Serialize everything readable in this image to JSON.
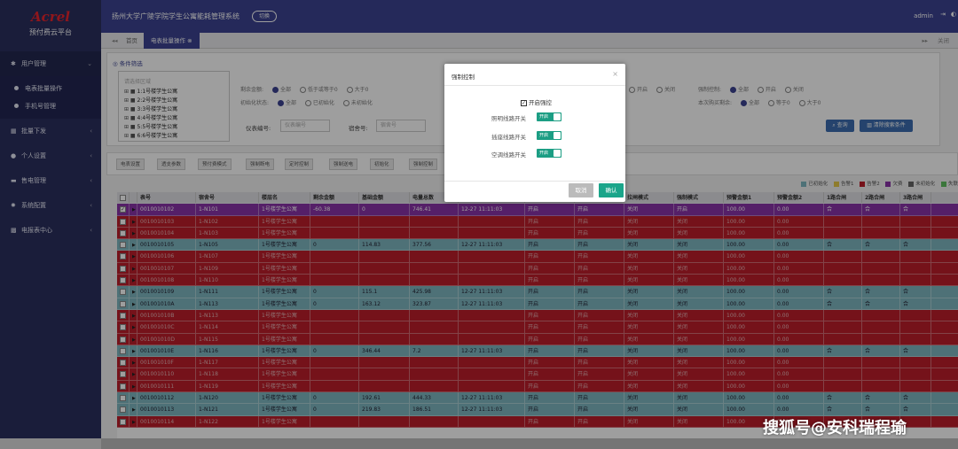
{
  "sidebar": {
    "brand": "Acrel",
    "platform": "预付费云平台",
    "menu": [
      {
        "label": "用户管理",
        "icon": "gear-icon"
      },
      {
        "label": "批量下发",
        "icon": "list-icon"
      },
      {
        "label": "个人设置",
        "icon": "user-icon"
      },
      {
        "label": "售电管理",
        "icon": "card-icon"
      },
      {
        "label": "系统配置",
        "icon": "gear-icon"
      },
      {
        "label": "电报表中心",
        "icon": "grid-icon"
      }
    ],
    "submenu": [
      "电表批量操作",
      "手机号管理"
    ]
  },
  "topbar": {
    "title": "扬州大学广陵学院学生公寓能耗管理系统",
    "switch_label": "切换",
    "user": "admin"
  },
  "tabs": {
    "home": "首页",
    "active": "电表批量操作",
    "right_label": "关闭"
  },
  "filter": {
    "title": "条件筛选",
    "tree_placeholder": "请选择区域",
    "tree_items": [
      "1:1号楼学生公寓",
      "2:2号楼学生公寓",
      "3:3号楼学生公寓",
      "4:4号楼学生公寓",
      "5:5号楼学生公寓",
      "6:6号楼学生公寓"
    ],
    "row1_label": "剩余金额:",
    "row1_options": [
      "全部",
      "低于或等于0",
      "大于0"
    ],
    "row2_label": "初始化状态:",
    "row2_options": [
      "全部",
      "已初始化",
      "未初始化"
    ],
    "row1_right_label": "强制控制:",
    "row1_right_options": [
      "全部",
      "开启",
      "关闭"
    ],
    "row2_right_label": "本次购买剩余:",
    "row2_right_options": [
      "全部",
      "等于0",
      "大于0"
    ],
    "mid1_right_options": [
      "开启",
      "关闭"
    ],
    "meter_label": "仪表编号:",
    "meter_placeholder": "仪表编号",
    "room_label": "宿舍号:",
    "room_placeholder": "宿舍号",
    "query_label": "查询",
    "clear_label": "清除搜索条件"
  },
  "toolbar": {
    "buttons": [
      "电表设置",
      "透支参数",
      "预付费模式",
      "强制断电",
      "定时控制",
      "强制送电",
      "初始化",
      "强制控制"
    ]
  },
  "legend": [
    {
      "label": "已初始化",
      "color": "#7fb7c0"
    },
    {
      "label": "告警1",
      "color": "#e6c84a"
    },
    {
      "label": "告警2",
      "color": "#bd1e2a"
    },
    {
      "label": "欠费",
      "color": "#8a33a8"
    },
    {
      "label": "未初始化",
      "color": "#666666"
    },
    {
      "label": "失联",
      "color": "#5fbf5f"
    }
  ],
  "table": {
    "headers": [
      "",
      "",
      "表号",
      "宿舍号",
      "楼层名",
      "剩余金额",
      "基础金额",
      "电量总数",
      "抄表时间",
      "强控状态",
      "跳闸状态",
      "拉闸模式",
      "强制模式",
      "预警金额1",
      "预警金额2",
      "1路合闸",
      "2路合闸",
      "3路合闸"
    ],
    "rows": [
      {
        "cls": "purple",
        "checked": true,
        "cells": [
          "0010010102",
          "1-N101",
          "1号楼学生公寓",
          "-60.38",
          "0",
          "746.41",
          "12-27 11:11:03",
          "开启",
          "开启",
          "关闭",
          "开启",
          "100.00",
          "0.00",
          "合",
          "合",
          "合"
        ]
      },
      {
        "cls": "red",
        "cells": [
          "0010010103",
          "1-N102",
          "1号楼学生公寓",
          "",
          "",
          "",
          "",
          "开启",
          "开启",
          "关闭",
          "关闭",
          "100.00",
          "0.00",
          "",
          "",
          ""
        ]
      },
      {
        "cls": "red",
        "cells": [
          "0010010104",
          "1-N103",
          "1号楼学生公寓",
          "",
          "",
          "",
          "",
          "开启",
          "开启",
          "关闭",
          "关闭",
          "100.00",
          "0.00",
          "",
          "",
          ""
        ]
      },
      {
        "cls": "teal",
        "cells": [
          "0010010105",
          "1-N105",
          "1号楼学生公寓",
          "0",
          "114.83",
          "377.56",
          "12-27 11:11:03",
          "开启",
          "开启",
          "关闭",
          "关闭",
          "100.00",
          "0.00",
          "合",
          "合",
          "合"
        ]
      },
      {
        "cls": "red",
        "cells": [
          "0010010106",
          "1-N107",
          "1号楼学生公寓",
          "",
          "",
          "",
          "",
          "开启",
          "开启",
          "关闭",
          "关闭",
          "100.00",
          "0.00",
          "",
          "",
          ""
        ]
      },
      {
        "cls": "red",
        "cells": [
          "0010010107",
          "1-N109",
          "1号楼学生公寓",
          "",
          "",
          "",
          "",
          "开启",
          "开启",
          "关闭",
          "关闭",
          "100.00",
          "0.00",
          "",
          "",
          ""
        ]
      },
      {
        "cls": "red",
        "cells": [
          "0010010108",
          "1-N110",
          "1号楼学生公寓",
          "",
          "",
          "",
          "",
          "开启",
          "开启",
          "关闭",
          "关闭",
          "100.00",
          "0.00",
          "",
          "",
          ""
        ]
      },
      {
        "cls": "teal",
        "cells": [
          "0010010109",
          "1-N111",
          "1号楼学生公寓",
          "0",
          "115.1",
          "425.98",
          "12-27 11:11:03",
          "开启",
          "开启",
          "关闭",
          "关闭",
          "100.00",
          "0.00",
          "合",
          "合",
          "合"
        ]
      },
      {
        "cls": "teal",
        "cells": [
          "001001010A",
          "1-N113",
          "1号楼学生公寓",
          "0",
          "163.12",
          "323.87",
          "12-27 11:11:03",
          "开启",
          "开启",
          "关闭",
          "关闭",
          "100.00",
          "0.00",
          "合",
          "合",
          "合"
        ]
      },
      {
        "cls": "red",
        "cells": [
          "001001010B",
          "1-N113",
          "1号楼学生公寓",
          "",
          "",
          "",
          "",
          "开启",
          "开启",
          "关闭",
          "关闭",
          "100.00",
          "0.00",
          "",
          "",
          ""
        ]
      },
      {
        "cls": "red",
        "cells": [
          "001001010C",
          "1-N114",
          "1号楼学生公寓",
          "",
          "",
          "",
          "",
          "开启",
          "开启",
          "关闭",
          "关闭",
          "100.00",
          "0.00",
          "",
          "",
          ""
        ]
      },
      {
        "cls": "red",
        "cells": [
          "001001010D",
          "1-N115",
          "1号楼学生公寓",
          "",
          "",
          "",
          "",
          "开启",
          "开启",
          "关闭",
          "关闭",
          "100.00",
          "0.00",
          "",
          "",
          ""
        ]
      },
      {
        "cls": "teal",
        "cells": [
          "001001010E",
          "1-N116",
          "1号楼学生公寓",
          "0",
          "346.44",
          "7.2",
          "12-27 11:11:03",
          "开启",
          "开启",
          "关闭",
          "关闭",
          "100.00",
          "0.00",
          "合",
          "合",
          "合"
        ]
      },
      {
        "cls": "red",
        "cells": [
          "001001010F",
          "1-N117",
          "1号楼学生公寓",
          "",
          "",
          "",
          "",
          "开启",
          "开启",
          "关闭",
          "关闭",
          "100.00",
          "0.00",
          "",
          "",
          ""
        ]
      },
      {
        "cls": "red",
        "cells": [
          "0010010110",
          "1-N118",
          "1号楼学生公寓",
          "",
          "",
          "",
          "",
          "开启",
          "开启",
          "关闭",
          "关闭",
          "100.00",
          "0.00",
          "",
          "",
          ""
        ]
      },
      {
        "cls": "red",
        "cells": [
          "0010010111",
          "1-N119",
          "1号楼学生公寓",
          "",
          "",
          "",
          "",
          "开启",
          "开启",
          "关闭",
          "关闭",
          "100.00",
          "0.00",
          "",
          "",
          ""
        ]
      },
      {
        "cls": "teal",
        "cells": [
          "0010010112",
          "1-N120",
          "1号楼学生公寓",
          "0",
          "192.61",
          "444.33",
          "12-27 11:11:03",
          "开启",
          "开启",
          "关闭",
          "关闭",
          "100.00",
          "0.00",
          "合",
          "合",
          "合"
        ]
      },
      {
        "cls": "teal",
        "cells": [
          "0010010113",
          "1-N121",
          "1号楼学生公寓",
          "0",
          "219.83",
          "186.51",
          "12-27 11:11:03",
          "开启",
          "开启",
          "关闭",
          "关闭",
          "100.00",
          "0.00",
          "合",
          "合",
          "合"
        ]
      },
      {
        "cls": "red",
        "cells": [
          "0010010114",
          "1-N122",
          "1号楼学生公寓",
          "",
          "",
          "",
          "",
          "开启",
          "开启",
          "关闭",
          "关闭",
          "100.00",
          "0.00",
          "",
          "",
          ""
        ]
      }
    ]
  },
  "modal": {
    "title": "强制控制",
    "enable_label": "开启强控",
    "switches": [
      {
        "label": "照明线路开关",
        "state": "开启"
      },
      {
        "label": "插座线路开关",
        "state": "开启"
      },
      {
        "label": "空调线路开关",
        "state": "开启"
      }
    ],
    "cancel": "取消",
    "confirm": "确认"
  },
  "watermark": "搜狐号@安科瑞程瑜"
}
